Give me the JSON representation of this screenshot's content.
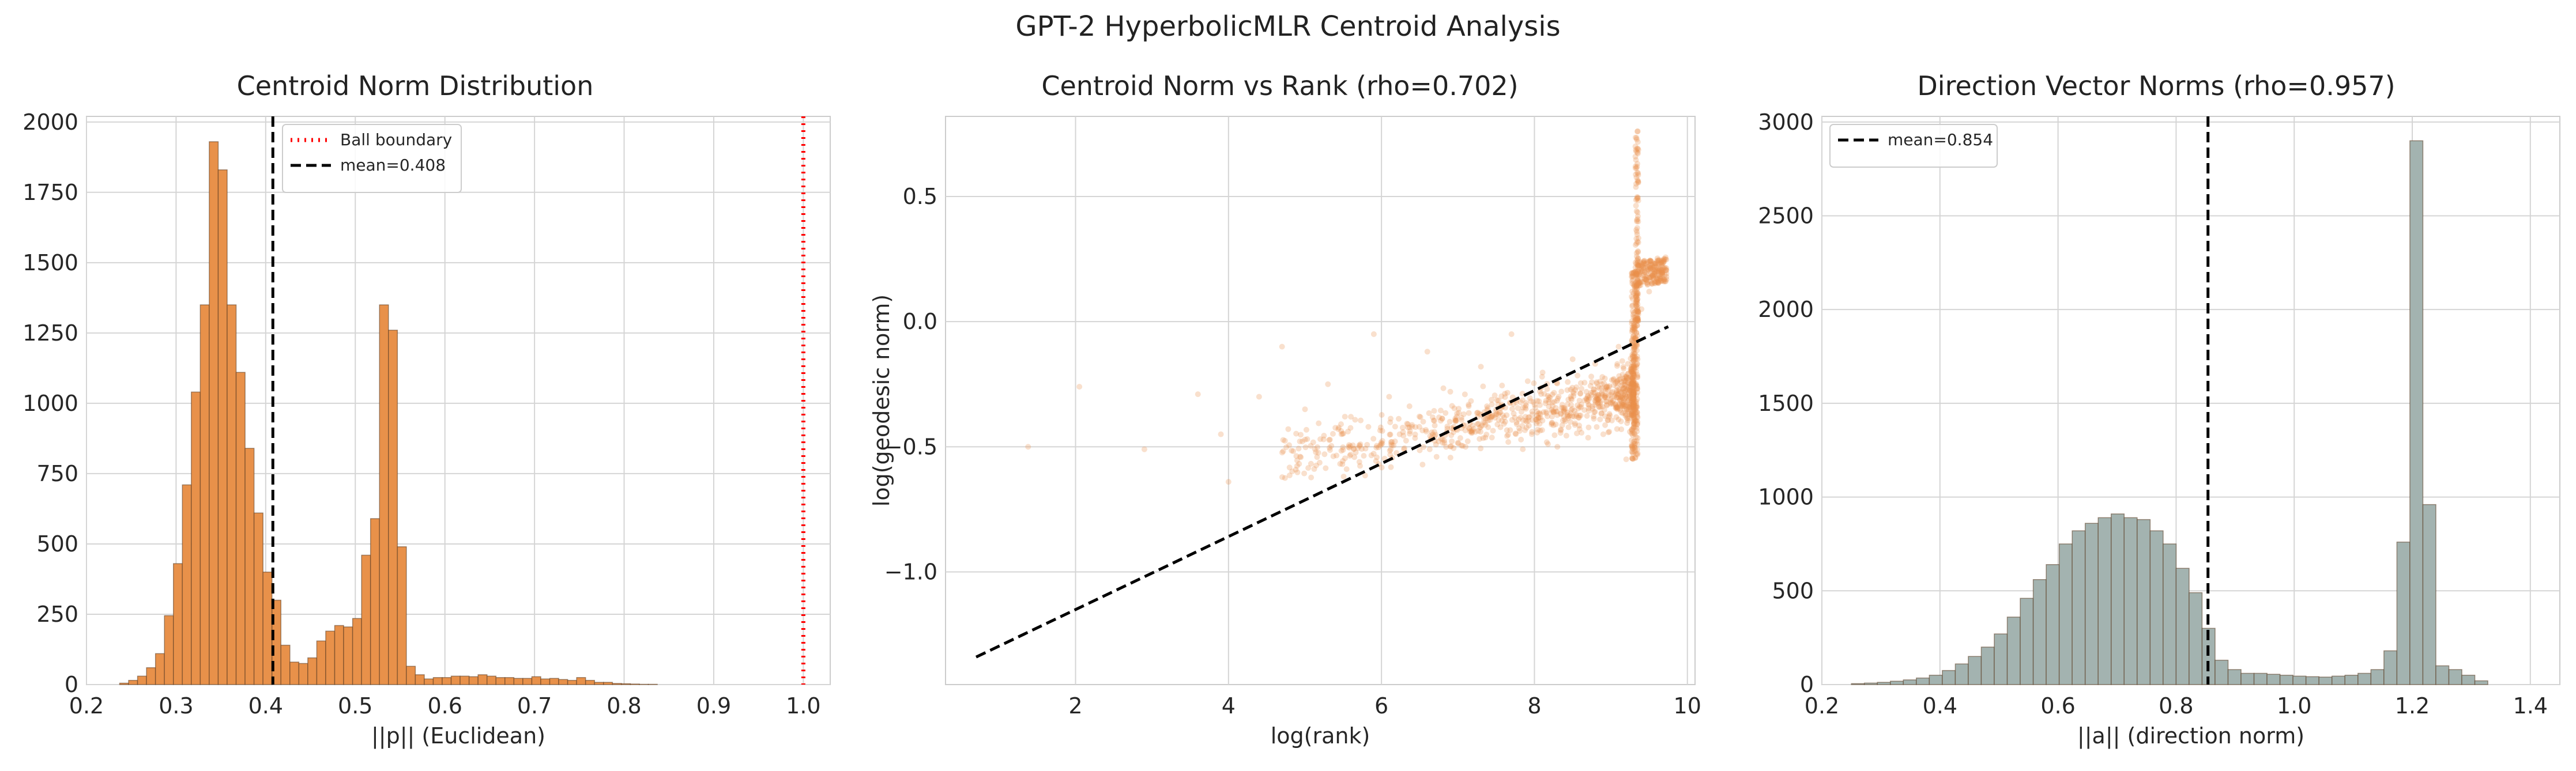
{
  "suptitle": "GPT-2 HyperbolicMLR Centroid Analysis",
  "chart_data": [
    {
      "type": "bar",
      "subtype": "histogram",
      "title": "Centroid Norm Distribution",
      "xlabel": "||p|| (Euclidean)",
      "ylabel": "",
      "xlim": [
        0.2,
        1.03
      ],
      "ylim": [
        0,
        2020
      ],
      "xticks": [
        "0.2",
        "0.3",
        "0.4",
        "0.5",
        "0.6",
        "0.7",
        "0.8",
        "0.9",
        "1.0"
      ],
      "yticks": [
        "0",
        "250",
        "500",
        "750",
        "1000",
        "1250",
        "1500",
        "1750",
        "2000"
      ],
      "grid": true,
      "bar_color": "#e8914a",
      "bin_start": 0.237,
      "bin_width": 0.01,
      "values": [
        5,
        15,
        30,
        60,
        110,
        245,
        430,
        710,
        1040,
        1350,
        1930,
        1830,
        1350,
        1110,
        840,
        610,
        400,
        300,
        140,
        80,
        75,
        95,
        155,
        190,
        210,
        205,
        235,
        460,
        590,
        1350,
        1260,
        490,
        65,
        35,
        20,
        25,
        25,
        30,
        30,
        28,
        35,
        30,
        25,
        25,
        22,
        22,
        28,
        20,
        22,
        18,
        15,
        25,
        15,
        8,
        8,
        4,
        3,
        2,
        1,
        1
      ],
      "vlines": [
        {
          "x": 1.0,
          "label": "Ball boundary",
          "color": "#ff0000",
          "style": "dotted"
        },
        {
          "x": 0.408,
          "label": "mean=0.408",
          "color": "#000000",
          "style": "dashed"
        }
      ],
      "legend": "upper center"
    },
    {
      "type": "scatter",
      "title": "Centroid Norm vs Rank (rho=0.702)",
      "xlabel": "log(rank)",
      "ylabel": "log(geodesic norm)",
      "xlim": [
        0.3,
        10.1
      ],
      "ylim": [
        -1.45,
        0.82
      ],
      "xticks": [
        "2",
        "4",
        "6",
        "8",
        "10"
      ],
      "yticks": [
        "−1.0",
        "−0.5",
        "0.0",
        "0.5"
      ],
      "grid": true,
      "point_color": "#e8914a",
      "regression_line": {
        "x": [
          0.7,
          9.75
        ],
        "y": [
          -1.34,
          -0.02
        ],
        "color": "#000000",
        "style": "dashed"
      },
      "points_sample": [
        [
          1.38,
          -0.5
        ],
        [
          2.05,
          -0.26
        ],
        [
          2.9,
          -0.51
        ],
        [
          3.6,
          -0.29
        ],
        [
          3.9,
          -0.45
        ],
        [
          4.0,
          -0.64
        ],
        [
          4.4,
          -0.3
        ],
        [
          4.7,
          -0.1
        ],
        [
          5.0,
          -0.35
        ],
        [
          5.3,
          -0.25
        ],
        [
          5.6,
          -0.38
        ],
        [
          5.9,
          -0.05
        ],
        [
          6.1,
          -0.3
        ],
        [
          6.4,
          -0.42
        ],
        [
          6.6,
          -0.12
        ],
        [
          6.9,
          -0.28
        ],
        [
          7.1,
          -0.5
        ],
        [
          7.3,
          -0.18
        ],
        [
          7.5,
          -0.35
        ],
        [
          7.7,
          -0.05
        ],
        [
          7.9,
          -0.4
        ],
        [
          8.1,
          -0.22
        ],
        [
          8.3,
          -0.5
        ],
        [
          8.5,
          -0.15
        ],
        [
          8.7,
          -0.3
        ],
        [
          8.9,
          -0.45
        ],
        [
          9.1,
          -0.1
        ],
        [
          9.2,
          -0.55
        ],
        [
          9.32,
          0.7
        ],
        [
          9.34,
          0.4
        ],
        [
          9.36,
          0.15
        ],
        [
          9.4,
          0.05
        ],
        [
          9.5,
          0.12
        ],
        [
          9.6,
          0.2
        ],
        [
          9.7,
          0.25
        ]
      ]
    },
    {
      "type": "bar",
      "subtype": "histogram",
      "title": "Direction Vector Norms (rho=0.957)",
      "xlabel": "||a|| (direction norm)",
      "ylabel": "",
      "xlim": [
        0.2,
        1.45
      ],
      "ylim": [
        0,
        3030
      ],
      "xticks": [
        "0.2",
        "0.4",
        "0.6",
        "0.8",
        "1.0",
        "1.2",
        "1.4"
      ],
      "yticks": [
        "0",
        "500",
        "1000",
        "1500",
        "2000",
        "2500",
        "3000"
      ],
      "grid": true,
      "bar_color": "#a3b3b0",
      "bin_start": 0.25,
      "bin_width": 0.022,
      "values": [
        5,
        8,
        12,
        18,
        25,
        35,
        50,
        75,
        110,
        150,
        200,
        270,
        360,
        460,
        560,
        640,
        750,
        820,
        860,
        890,
        910,
        890,
        880,
        820,
        750,
        620,
        490,
        300,
        130,
        80,
        60,
        60,
        55,
        50,
        45,
        42,
        40,
        45,
        50,
        60,
        80,
        180,
        760,
        2900,
        960,
        100,
        80,
        50,
        20
      ],
      "vlines": [
        {
          "x": 0.854,
          "label": "mean=0.854",
          "color": "#000000",
          "style": "dashed"
        }
      ],
      "legend": "upper left"
    }
  ]
}
